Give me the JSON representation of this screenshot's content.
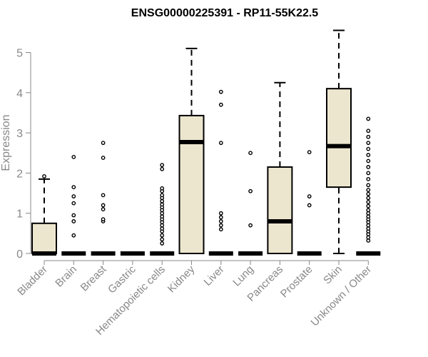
{
  "chart_data": {
    "type": "box",
    "title": "ENSG00000225391 - RP11-55K22.5",
    "xlabel": "",
    "ylabel": "Expression",
    "ylim": [
      0,
      5.6
    ],
    "yticks": [
      0,
      1,
      2,
      3,
      4,
      5
    ],
    "categories": [
      "Bladder",
      "Brain",
      "Breast",
      "Gastric",
      "Hematopoietic cells",
      "Kidney",
      "Liver",
      "Lung",
      "Pancreas",
      "Prostate",
      "Skin",
      "Unknown / Other"
    ],
    "box_fill": "#ede6cf",
    "box_stroke": "#000000",
    "boxes": [
      {
        "category": "Bladder",
        "min": 0,
        "q1": 0,
        "median": 0,
        "q3": 0.75,
        "max": 1.85,
        "outliers": [
          1.92
        ]
      },
      {
        "category": "Brain",
        "min": 0,
        "q1": 0,
        "median": 0,
        "q3": 0,
        "max": 0,
        "outliers": [
          0.45,
          0.8,
          0.95,
          1.25,
          1.42,
          1.65,
          2.4
        ]
      },
      {
        "category": "Breast",
        "min": 0,
        "q1": 0,
        "median": 0,
        "q3": 0,
        "max": 0,
        "outliers": [
          0.8,
          0.85,
          1.1,
          1.2,
          1.45,
          2.38,
          2.75
        ]
      },
      {
        "category": "Gastric",
        "min": 0,
        "q1": 0,
        "median": 0,
        "q3": 0,
        "max": 0,
        "outliers": []
      },
      {
        "category": "Hematopoietic cells",
        "min": 0,
        "q1": 0,
        "median": 0,
        "q3": 0,
        "max": 0,
        "outliers": [
          0.25,
          0.35,
          0.45,
          0.55,
          0.62,
          0.7,
          0.78,
          0.85,
          0.92,
          1.0,
          1.08,
          1.15,
          1.22,
          1.3,
          1.38,
          1.45,
          1.55,
          1.62,
          2.1,
          2.2
        ]
      },
      {
        "category": "Kidney",
        "min": 0,
        "q1": 0,
        "median": 2.77,
        "q3": 3.43,
        "max": 5.1,
        "outliers": []
      },
      {
        "category": "Liver",
        "min": 0,
        "q1": 0,
        "median": 0,
        "q3": 0,
        "max": 0,
        "outliers": [
          0.6,
          0.7,
          0.8,
          0.9,
          1.0,
          2.75,
          3.7,
          4.02
        ]
      },
      {
        "category": "Lung",
        "min": 0,
        "q1": 0,
        "median": 0,
        "q3": 0,
        "max": 0,
        "outliers": [
          0.7,
          1.55,
          2.5
        ]
      },
      {
        "category": "Pancreas",
        "min": 0,
        "q1": 0,
        "median": 0.8,
        "q3": 2.15,
        "max": 4.25,
        "outliers": []
      },
      {
        "category": "Prostate",
        "min": 0,
        "q1": 0,
        "median": 0,
        "q3": 0,
        "max": 0,
        "outliers": [
          1.2,
          1.42,
          2.52
        ]
      },
      {
        "category": "Skin",
        "min": 0,
        "q1": 1.65,
        "median": 2.67,
        "q3": 4.1,
        "max": 5.55,
        "outliers": []
      },
      {
        "category": "Unknown / Other",
        "min": 0,
        "q1": 0,
        "median": 0,
        "q3": 0,
        "max": 0,
        "outliers": [
          0.32,
          0.4,
          0.48,
          0.55,
          0.62,
          0.7,
          0.78,
          0.85,
          0.92,
          1.0,
          1.08,
          1.18,
          1.28,
          1.38,
          1.48,
          1.58,
          1.7,
          1.85,
          2.0,
          2.15,
          2.3,
          2.45,
          2.6,
          2.75,
          2.9,
          3.05,
          3.35
        ]
      }
    ]
  }
}
